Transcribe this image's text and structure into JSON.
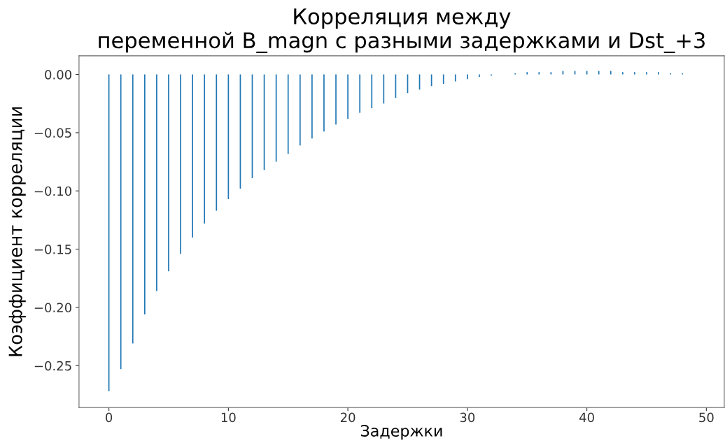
{
  "chart_data": {
    "type": "bar",
    "title": "Корреляция между\nпеременной B_magn с разными задержками и Dst_+3",
    "xlabel": "Задержки",
    "ylabel": "Коэффициент корреляции",
    "x": [
      0,
      1,
      2,
      3,
      4,
      5,
      6,
      7,
      8,
      9,
      10,
      11,
      12,
      13,
      14,
      15,
      16,
      17,
      18,
      19,
      20,
      21,
      22,
      23,
      24,
      25,
      26,
      27,
      28,
      29,
      30,
      31,
      32,
      33,
      34,
      35,
      36,
      37,
      38,
      39,
      40,
      41,
      42,
      43,
      44,
      45,
      46,
      47,
      48
    ],
    "values": [
      -0.272,
      -0.253,
      -0.231,
      -0.206,
      -0.186,
      -0.169,
      -0.154,
      -0.14,
      -0.128,
      -0.117,
      -0.107,
      -0.098,
      -0.089,
      -0.082,
      -0.075,
      -0.068,
      -0.061,
      -0.055,
      -0.049,
      -0.043,
      -0.038,
      -0.033,
      -0.029,
      -0.025,
      -0.02,
      -0.016,
      -0.013,
      -0.01,
      -0.008,
      -0.006,
      -0.004,
      -0.002,
      -0.001,
      0.0,
      0.001,
      0.002,
      0.002,
      0.002,
      0.003,
      0.003,
      0.003,
      0.003,
      0.003,
      0.002,
      0.002,
      0.002,
      0.002,
      0.001,
      0.001
    ],
    "color": "#1f77b4",
    "xlim": [
      -2.5,
      51.5
    ],
    "xticks": [
      0,
      10,
      20,
      30,
      40,
      50
    ],
    "ylim": [
      -0.286,
      0.016
    ],
    "yticks": [
      {
        "value": 0,
        "label": "0.00"
      },
      {
        "value": -0.05,
        "label": "−0.05"
      },
      {
        "value": -0.1,
        "label": "−0.10"
      },
      {
        "value": -0.15,
        "label": "−0.15"
      },
      {
        "value": -0.2,
        "label": "−0.20"
      },
      {
        "value": -0.25,
        "label": "−0.25"
      }
    ],
    "grid": false
  }
}
